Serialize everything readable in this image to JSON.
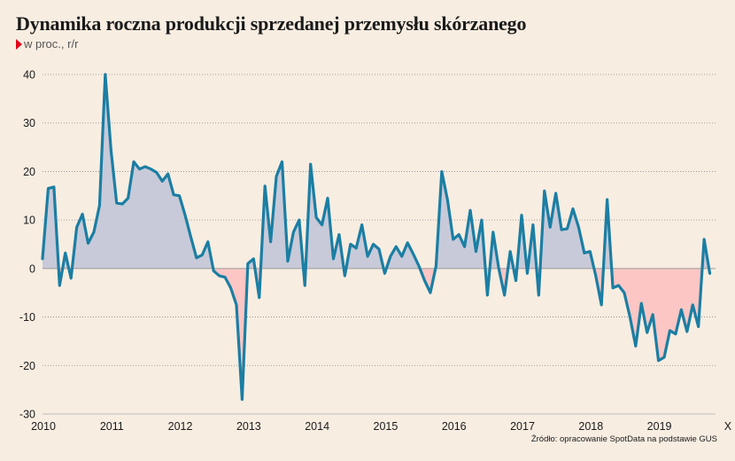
{
  "title": "Dynamika roczna produkcji sprzedanej przemysłu skórzanego",
  "subtitle": "w proc., r/r",
  "source": "Źródło: opracowanie SpotData na podstawie GUS",
  "colors": {
    "background": "#f8ede1",
    "line": "#1b7ea3",
    "positive_area": "#c8cad9",
    "negative_area": "#fbc6c4",
    "grid": "#888888",
    "accent_marker": "#e2001a"
  },
  "chart_data": {
    "type": "area",
    "title": "Dynamika roczna produkcji sprzedanej przemysłu skórzanego",
    "ylabel": "w proc., r/r",
    "ylim": [
      -30,
      40
    ],
    "y_ticks": [
      40,
      30,
      20,
      10,
      0,
      -10,
      -20,
      -30
    ],
    "x_tick_labels": [
      "2010",
      "2011",
      "2012",
      "2013",
      "2014",
      "2015",
      "2016",
      "2017",
      "2018",
      "2019",
      "X"
    ],
    "x_range": [
      0,
      118
    ],
    "grid": true,
    "series": [
      {
        "values": [
          2,
          16.5,
          16.8,
          -3.5,
          3.2,
          -2,
          8.5,
          11.2,
          5.2,
          7.5,
          13,
          40,
          24.5,
          13.5,
          13.3,
          14.5,
          22,
          20.5,
          21,
          20.5,
          19.8,
          18,
          19.5,
          15.2,
          15,
          11,
          6.5,
          2.2,
          2.8,
          5.5,
          -0.5,
          -1.5,
          -1.8,
          -4,
          -7.5,
          -27,
          1,
          2,
          -6,
          17,
          5.5,
          19,
          22,
          1.5,
          7.5,
          10,
          -3.5,
          21.5,
          10.5,
          9,
          14.5,
          2,
          7,
          -1.5,
          5,
          4.2,
          9,
          2.5,
          5,
          4,
          -1,
          2.5,
          4.5,
          2.5,
          5.3,
          3,
          0.5,
          -2.5,
          -5,
          0.5,
          20,
          14.2,
          6,
          7,
          4.5,
          12,
          3.5,
          10,
          -5.5,
          7.5,
          0,
          -5.5,
          3.5,
          -2.5,
          11,
          -1,
          9,
          -5.5,
          16,
          8.5,
          15.5,
          8,
          8.2,
          12.3,
          8.5,
          3.2,
          3.5,
          -1.5,
          -7.5,
          14.2,
          -4,
          -3.5,
          -5,
          -10,
          -16,
          -7.2,
          -13.2,
          -9.5,
          -19,
          -18.3,
          -12.8,
          -13.5,
          -8.5,
          -13,
          -7.5,
          -12,
          6,
          -1
        ]
      }
    ]
  }
}
